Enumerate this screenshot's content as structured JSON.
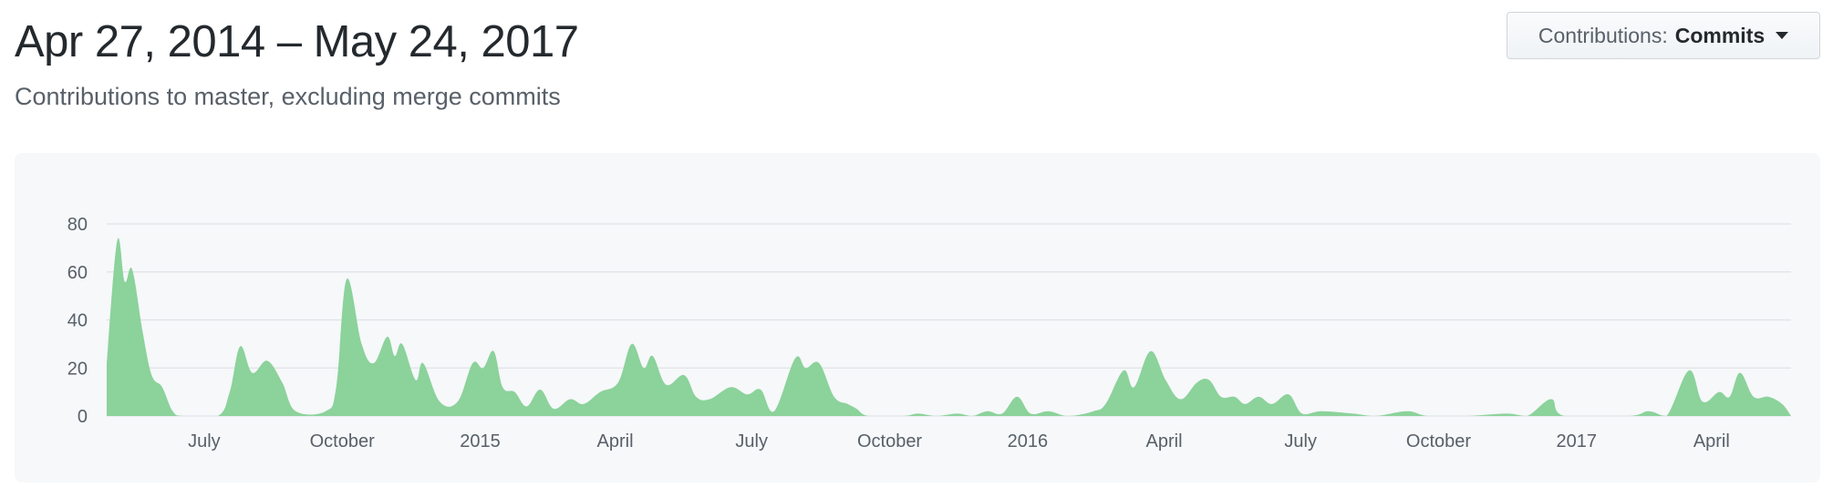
{
  "header": {
    "date_range": "Apr 27, 2014 – May 24, 2017",
    "subtitle": "Contributions to master, excluding merge commits"
  },
  "dropdown": {
    "label": "Contributions:",
    "value": "Commits",
    "icon": "caret-down-icon"
  },
  "chart_data": {
    "type": "area",
    "title": "",
    "xlabel": "",
    "ylabel": "",
    "ylim": [
      0,
      80
    ],
    "xlim": [
      "2014-04-27",
      "2017-05-24"
    ],
    "grid": true,
    "color": "#8cd29b",
    "y_ticks": [
      0,
      20,
      40,
      60,
      80
    ],
    "x_ticks": [
      {
        "date": "2014-07-01",
        "label": "July"
      },
      {
        "date": "2014-10-01",
        "label": "October"
      },
      {
        "date": "2015-01-01",
        "label": "2015"
      },
      {
        "date": "2015-04-01",
        "label": "April"
      },
      {
        "date": "2015-07-01",
        "label": "July"
      },
      {
        "date": "2015-10-01",
        "label": "October"
      },
      {
        "date": "2016-01-01",
        "label": "2016"
      },
      {
        "date": "2016-04-01",
        "label": "April"
      },
      {
        "date": "2016-07-01",
        "label": "July"
      },
      {
        "date": "2016-10-01",
        "label": "October"
      },
      {
        "date": "2017-01-01",
        "label": "2017"
      },
      {
        "date": "2017-04-01",
        "label": "April"
      }
    ],
    "series": [
      {
        "values": [
          [
            "2014-04-27",
            22
          ],
          [
            "2014-05-04",
            73
          ],
          [
            "2014-05-09",
            56
          ],
          [
            "2014-05-14",
            61
          ],
          [
            "2014-05-21",
            35
          ],
          [
            "2014-05-27",
            17
          ],
          [
            "2014-06-03",
            12
          ],
          [
            "2014-06-10",
            2
          ],
          [
            "2014-06-17",
            0
          ],
          [
            "2014-07-10",
            0
          ],
          [
            "2014-07-18",
            10
          ],
          [
            "2014-07-25",
            29
          ],
          [
            "2014-08-02",
            18
          ],
          [
            "2014-08-12",
            23
          ],
          [
            "2014-08-22",
            14
          ],
          [
            "2014-08-31",
            2
          ],
          [
            "2014-09-20",
            2
          ],
          [
            "2014-09-27",
            12
          ],
          [
            "2014-10-04",
            57
          ],
          [
            "2014-10-14",
            30
          ],
          [
            "2014-10-22",
            22
          ],
          [
            "2014-10-31",
            33
          ],
          [
            "2014-11-05",
            25
          ],
          [
            "2014-11-10",
            30
          ],
          [
            "2014-11-19",
            15
          ],
          [
            "2014-11-24",
            22
          ],
          [
            "2014-12-05",
            6
          ],
          [
            "2014-12-17",
            6
          ],
          [
            "2014-12-27",
            22
          ],
          [
            "2015-01-03",
            20
          ],
          [
            "2015-01-10",
            27
          ],
          [
            "2015-01-16",
            12
          ],
          [
            "2015-01-24",
            10
          ],
          [
            "2015-02-01",
            4
          ],
          [
            "2015-02-10",
            11
          ],
          [
            "2015-02-19",
            3
          ],
          [
            "2015-03-02",
            7
          ],
          [
            "2015-03-11",
            5
          ],
          [
            "2015-03-22",
            10
          ],
          [
            "2015-04-03",
            14
          ],
          [
            "2015-04-12",
            30
          ],
          [
            "2015-04-20",
            20
          ],
          [
            "2015-04-26",
            25
          ],
          [
            "2015-05-05",
            13
          ],
          [
            "2015-05-17",
            17
          ],
          [
            "2015-05-25",
            8
          ],
          [
            "2015-06-03",
            7
          ],
          [
            "2015-06-17",
            12
          ],
          [
            "2015-06-28",
            9
          ],
          [
            "2015-07-07",
            11
          ],
          [
            "2015-07-16",
            2
          ],
          [
            "2015-07-30",
            24
          ],
          [
            "2015-08-06",
            20
          ],
          [
            "2015-08-15",
            22
          ],
          [
            "2015-08-25",
            8
          ],
          [
            "2015-09-03",
            5
          ],
          [
            "2015-09-09",
            3
          ],
          [
            "2015-09-17",
            0
          ],
          [
            "2015-10-10",
            0
          ],
          [
            "2015-10-20",
            1
          ],
          [
            "2015-11-01",
            0
          ],
          [
            "2015-11-15",
            1
          ],
          [
            "2015-11-25",
            0
          ],
          [
            "2015-12-05",
            2
          ],
          [
            "2015-12-15",
            1
          ],
          [
            "2015-12-25",
            8
          ],
          [
            "2016-01-03",
            1
          ],
          [
            "2016-01-15",
            2
          ],
          [
            "2016-01-28",
            0
          ],
          [
            "2016-02-14",
            2
          ],
          [
            "2016-02-22",
            5
          ],
          [
            "2016-03-05",
            19
          ],
          [
            "2016-03-12",
            12
          ],
          [
            "2016-03-23",
            27
          ],
          [
            "2016-04-02",
            15
          ],
          [
            "2016-04-12",
            7
          ],
          [
            "2016-04-23",
            14
          ],
          [
            "2016-05-01",
            15
          ],
          [
            "2016-05-09",
            8
          ],
          [
            "2016-05-18",
            8
          ],
          [
            "2016-05-25",
            5
          ],
          [
            "2016-06-03",
            8
          ],
          [
            "2016-06-12",
            5
          ],
          [
            "2016-06-23",
            9
          ],
          [
            "2016-07-02",
            1
          ],
          [
            "2016-07-15",
            2
          ],
          [
            "2016-08-05",
            1
          ],
          [
            "2016-08-20",
            0
          ],
          [
            "2016-09-10",
            2
          ],
          [
            "2016-09-24",
            0
          ],
          [
            "2016-10-20",
            0
          ],
          [
            "2016-11-15",
            1
          ],
          [
            "2016-11-29",
            0
          ],
          [
            "2016-12-15",
            7
          ],
          [
            "2016-12-24",
            0
          ],
          [
            "2017-02-05",
            0
          ],
          [
            "2017-02-18",
            2
          ],
          [
            "2017-03-02",
            0
          ],
          [
            "2017-03-17",
            19
          ],
          [
            "2017-03-26",
            6
          ],
          [
            "2017-04-06",
            10
          ],
          [
            "2017-04-13",
            8
          ],
          [
            "2017-04-20",
            18
          ],
          [
            "2017-04-29",
            8
          ],
          [
            "2017-05-09",
            8
          ],
          [
            "2017-05-18",
            5
          ],
          [
            "2017-05-24",
            0
          ]
        ]
      }
    ]
  }
}
